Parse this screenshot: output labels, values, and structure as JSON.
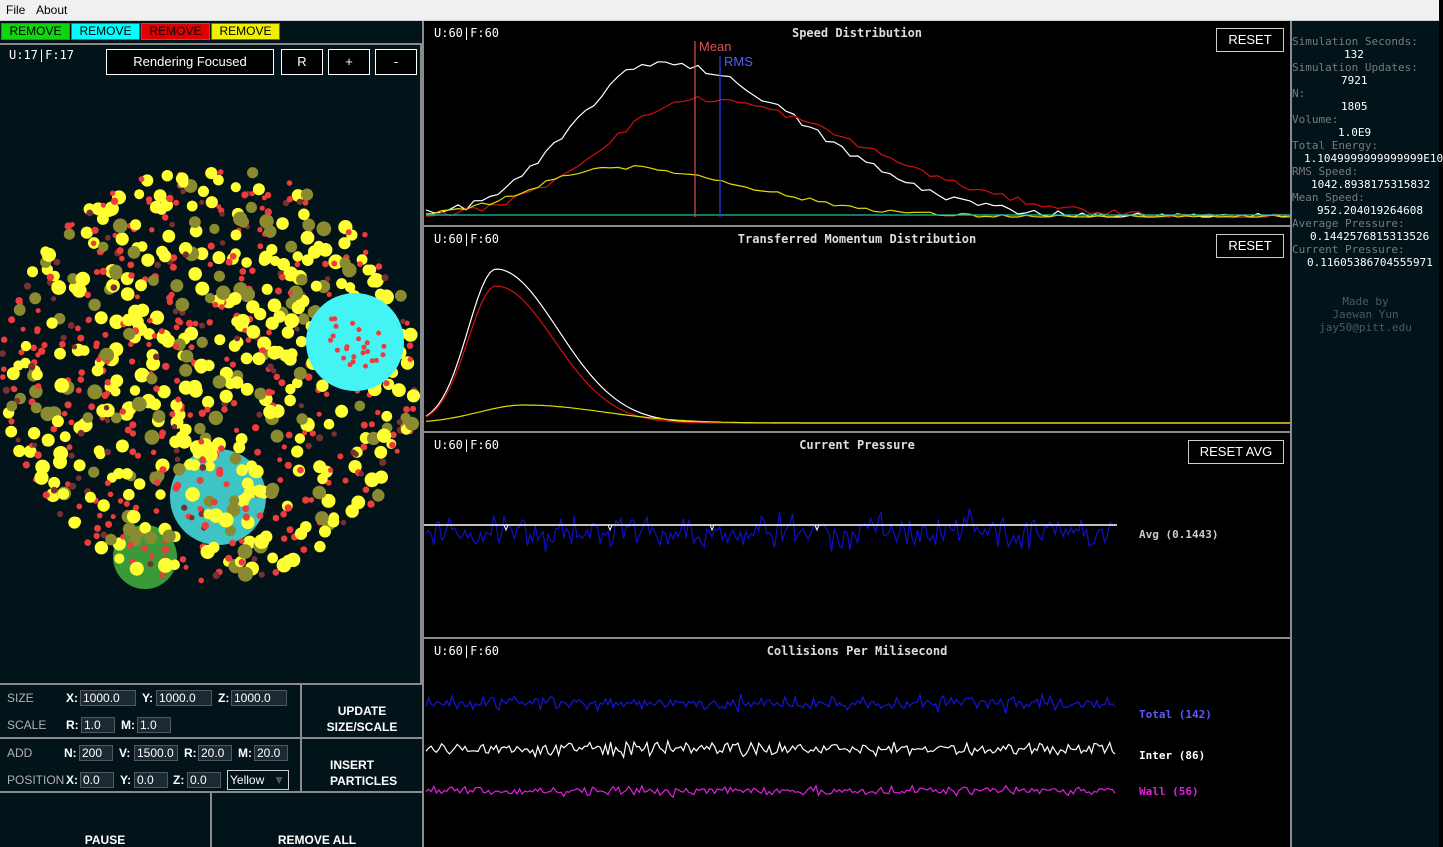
{
  "menu": {
    "file": "File",
    "about": "About"
  },
  "remove_buttons": [
    {
      "label": "REMOVE",
      "color": "#0fd60f"
    },
    {
      "label": "REMOVE",
      "color": "#00ffff"
    },
    {
      "label": "REMOVE",
      "color": "#e00000"
    },
    {
      "label": "REMOVE",
      "color": "#f0f000"
    }
  ],
  "simulation": {
    "update_rate": "U:17|F:17",
    "render_mode_label": "Rendering Focused",
    "r_label": "R",
    "plus_label": "+",
    "minus_label": "-"
  },
  "controls": {
    "size_label": "SIZE",
    "scale_label": "SCALE",
    "add_label": "ADD",
    "position_label": "POSITION",
    "x_label": "X:",
    "y_label": "Y:",
    "z_label": "Z:",
    "r_label": "R:",
    "m_label": "M:",
    "n_label": "N:",
    "v_label": "V:",
    "size_x": "1000.0",
    "size_y": "1000.0",
    "size_z": "1000.0",
    "scale_r": "1.0",
    "scale_m": "1.0",
    "add_n": "200",
    "add_v": "1500.0",
    "add_r": "20.0",
    "add_m": "20.0",
    "pos_x": "0.0",
    "pos_y": "0.0",
    "pos_z": "0.0",
    "color_select": "Yellow",
    "update_line1": "UPDATE",
    "update_line2": "SIZE/SCALE",
    "insert_line1": "INSERT",
    "insert_line2": "PARTICLES",
    "pause": "PAUSE",
    "remove_all": "REMOVE ALL"
  },
  "graphs": {
    "speed": {
      "rate": "U:60|F:60",
      "title": "Speed Distribution",
      "reset": "RESET",
      "mean_label": "Mean",
      "rms_label": "RMS"
    },
    "momentum": {
      "rate": "U:60|F:60",
      "title": "Transferred Momentum Distribution",
      "reset": "RESET"
    },
    "pressure": {
      "rate": "U:60|F:60",
      "title": "Current Pressure",
      "reset": "RESET AVG",
      "avg_label": "Avg (0.1443)"
    },
    "collisions": {
      "rate": "U:60|F:60",
      "title": "Collisions Per Milisecond",
      "total_label": "Total (142)",
      "inter_label": "Inter (86)",
      "wall_label": "Wall (56)"
    }
  },
  "stats": {
    "sim_seconds_label": "Simulation Seconds:",
    "sim_seconds": "132",
    "sim_updates_label": "Simulation Updates:",
    "sim_updates": "7921",
    "n_label": "N:",
    "n": "1805",
    "volume_label": "Volume:",
    "volume": "1.0E9",
    "total_energy_label": "Total Energy:",
    "total_energy": "1.1049999999999999E10",
    "rms_speed_label": "RMS Speed:",
    "rms_speed": "1042.8938175315832",
    "mean_speed_label": "Mean Speed:",
    "mean_speed": "952.204019264608",
    "avg_pressure_label": "Average Pressure:",
    "avg_pressure": "0.1442576815313526",
    "cur_pressure_label": "Current Pressure:",
    "cur_pressure": "0.11605386704555971",
    "credit_line1": "Made by",
    "credit_line2": "Jaewan Yun",
    "credit_line3": "jay50@pitt.edu"
  },
  "colors": {
    "green": "#0fd60f",
    "cyan": "#00ffff",
    "red": "#e00000",
    "yellow": "#f0f000",
    "particle_red": "#ee3b3b",
    "particle_yellow": "#ffff33",
    "pressure_blue": "#1010c8",
    "mean_line": "#e05050",
    "rms_line": "#3040ff",
    "wall_magenta": "#e020e0"
  }
}
